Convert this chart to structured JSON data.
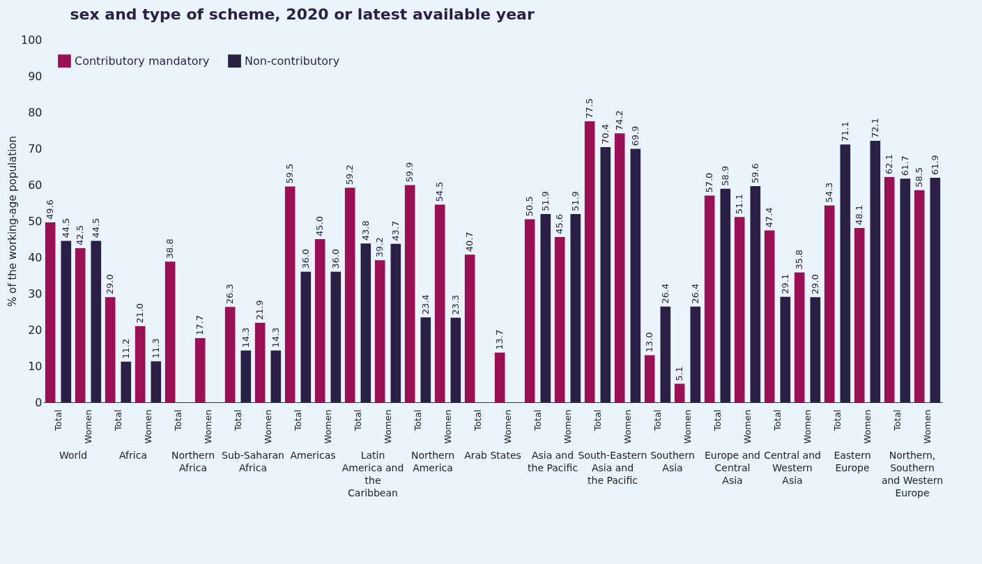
{
  "chart_data": {
    "type": "bar",
    "title": "sex and type of scheme, 2020 or latest available year",
    "ylabel": "% of the working-age population",
    "categories": [
      "Total",
      "Women",
      "Total",
      "Women",
      "Total",
      "Women",
      "Total",
      "Women",
      "Total",
      "Women",
      "Total",
      "Women",
      "Total",
      "Women",
      "Total",
      "Women",
      "Total",
      "Women",
      "Total",
      "Women",
      "Total",
      "Women",
      "Total",
      "Women",
      "Total",
      "Women",
      "Total",
      "Women",
      "Total",
      "Women"
    ],
    "series": [
      {
        "name": "Contributory mandatory",
        "color": "#9b0f55",
        "values": [
          49.6,
          42.5,
          29.0,
          21.0,
          38.8,
          17.7,
          26.3,
          21.9,
          59.5,
          45.0,
          59.2,
          39.2,
          59.9,
          54.5,
          40.7,
          13.7,
          50.5,
          45.6,
          77.5,
          74.2,
          13.0,
          5.1,
          57.0,
          51.1,
          47.4,
          35.8,
          54.3,
          48.1,
          62.1,
          58.5
        ],
        "value_labels": [
          "49.6",
          "42.5",
          "29.0",
          "21.0",
          "38.8",
          "17.7",
          "26.3",
          "21.9",
          "59.5",
          "45.0",
          "59.2",
          "39.2",
          "59.9",
          "54.5",
          "40.7",
          "13.7",
          "50.5",
          "45.6",
          "77.5",
          "74.2",
          "13.0",
          "5.1",
          "57.0",
          "51.1",
          "47.4",
          "35.8",
          "54.3",
          "48.1",
          "62.1",
          "58.5"
        ]
      },
      {
        "name": "Non-contributory",
        "color": "#2a1f45",
        "values": [
          44.5,
          44.5,
          11.2,
          11.3,
          null,
          null,
          14.3,
          14.3,
          36.0,
          36.0,
          43.8,
          43.7,
          23.4,
          23.3,
          null,
          null,
          51.9,
          51.9,
          70.4,
          69.9,
          26.4,
          26.4,
          58.9,
          59.6,
          29.1,
          29.0,
          71.1,
          72.1,
          61.7,
          61.9
        ],
        "value_labels": [
          "44.5",
          "44.5",
          "11.2",
          "11.3",
          null,
          null,
          "14.3",
          "14.3",
          "36.0",
          "36.0",
          "43.8",
          "43.7",
          "23.4",
          "23.3",
          null,
          null,
          "51.9",
          "51.9",
          "70.4",
          "69.9",
          "26.4",
          "26.4",
          "58.9",
          "59.6",
          "29.1",
          "29.0",
          "71.1",
          "72.1",
          "61.7",
          "61.9"
        ]
      }
    ],
    "annotations": [
      "World",
      "Africa",
      "Northern Africa",
      "Sub-Saharan Africa",
      "Americas",
      "Latin America and the Caribbean",
      "Northern America",
      "Arab States",
      "Asia and the Pacific",
      "South-Eastern Asia and the Pacific",
      "Southern Asia",
      "Europe and Central Asia",
      "Central and Western Asia",
      "Eastern Europe",
      "Northern, Southern and Western Europe"
    ],
    "ylim": [
      0,
      100
    ],
    "yticks": [
      0,
      10,
      20,
      30,
      40,
      50,
      60,
      70,
      80,
      90,
      100
    ],
    "legend": "top left"
  }
}
